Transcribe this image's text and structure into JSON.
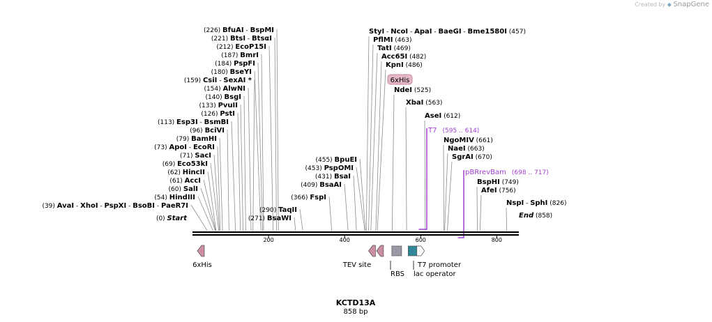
{
  "branding": {
    "created_by": "Created by",
    "app_name": "SnapGene"
  },
  "sequence": {
    "name": "KCTD13A",
    "length_label": "858 bp",
    "length": 858
  },
  "axis": {
    "ticks": [
      200,
      400,
      600,
      800
    ]
  },
  "left_labels": [
    {
      "pos": 0,
      "coord": "(0)",
      "names": [
        "Start"
      ],
      "italic": true
    },
    {
      "pos": 39,
      "coord": "(39)",
      "names": [
        "AvaI",
        "XhoI",
        "PspXI",
        "BsoBI",
        "PaeR7I"
      ]
    },
    {
      "pos": 54,
      "coord": "(54)",
      "names": [
        "HindIII"
      ]
    },
    {
      "pos": 60,
      "coord": "(60)",
      "names": [
        "SalI"
      ]
    },
    {
      "pos": 61,
      "coord": "(61)",
      "names": [
        "AccI"
      ]
    },
    {
      "pos": 62,
      "coord": "(62)",
      "names": [
        "HincII"
      ]
    },
    {
      "pos": 69,
      "coord": "(69)",
      "names": [
        "Eco53kI"
      ]
    },
    {
      "pos": 71,
      "coord": "(71)",
      "names": [
        "SacI"
      ]
    },
    {
      "pos": 73,
      "coord": "(73)",
      "names": [
        "ApoI",
        "EcoRI"
      ]
    },
    {
      "pos": 79,
      "coord": "(79)",
      "names": [
        "BamHI"
      ]
    },
    {
      "pos": 96,
      "coord": "(96)",
      "names": [
        "BciVI"
      ]
    },
    {
      "pos": 113,
      "coord": "(113)",
      "names": [
        "Esp3I",
        "BsmBI"
      ]
    },
    {
      "pos": 126,
      "coord": "(126)",
      "names": [
        "PstI"
      ]
    },
    {
      "pos": 133,
      "coord": "(133)",
      "names": [
        "PvuII"
      ]
    },
    {
      "pos": 140,
      "coord": "(140)",
      "names": [
        "BsgI"
      ]
    },
    {
      "pos": 154,
      "coord": "(154)",
      "names": [
        "AlwNI"
      ]
    },
    {
      "pos": 159,
      "coord": "(159)",
      "names": [
        "CsiI",
        "SexAI *"
      ]
    },
    {
      "pos": 180,
      "coord": "(180)",
      "names": [
        "BseYI"
      ]
    },
    {
      "pos": 184,
      "coord": "(184)",
      "names": [
        "PspFI"
      ]
    },
    {
      "pos": 187,
      "coord": "(187)",
      "names": [
        "BmrI"
      ]
    },
    {
      "pos": 212,
      "coord": "(212)",
      "names": [
        "EcoP15I"
      ]
    },
    {
      "pos": 221,
      "coord": "(221)",
      "names": [
        "BtsI",
        "BtsαI"
      ]
    },
    {
      "pos": 226,
      "coord": "(226)",
      "names": [
        "BfuAI",
        "BspMI"
      ]
    },
    {
      "pos": 271,
      "coord": "(271)",
      "names": [
        "BsaWI"
      ]
    },
    {
      "pos": 290,
      "coord": "(290)",
      "names": [
        "TaqII"
      ]
    },
    {
      "pos": 366,
      "coord": "(366)",
      "names": [
        "FspI"
      ]
    },
    {
      "pos": 409,
      "coord": "(409)",
      "names": [
        "BsaAI"
      ]
    },
    {
      "pos": 431,
      "coord": "(431)",
      "names": [
        "BsaI"
      ]
    },
    {
      "pos": 453,
      "coord": "(453)",
      "names": [
        "PspOMI"
      ]
    },
    {
      "pos": 455,
      "coord": "(455)",
      "names": [
        "BpuEI"
      ]
    }
  ],
  "right_labels": [
    {
      "pos": 457,
      "coord": "(457)",
      "names": [
        "StyI",
        "NcoI",
        "ApaI",
        "BaeGI",
        "Bme1580I"
      ]
    },
    {
      "pos": 463,
      "coord": "(463)",
      "names": [
        "PflMI"
      ]
    },
    {
      "pos": 469,
      "coord": "(469)",
      "names": [
        "TatI"
      ]
    },
    {
      "pos": 482,
      "coord": "(482)",
      "names": [
        "Acc65I"
      ]
    },
    {
      "pos": 486,
      "coord": "(486)",
      "names": [
        "KpnI"
      ]
    },
    {
      "pos": 525,
      "coord": "(525)",
      "names": [
        "NdeI"
      ]
    },
    {
      "pos": 563,
      "coord": "(563)",
      "names": [
        "XbaI"
      ]
    },
    {
      "pos": 612,
      "coord": "(612)",
      "names": [
        "AseI"
      ]
    },
    {
      "pos": 661,
      "coord": "(661)",
      "names": [
        "NgoMIV"
      ]
    },
    {
      "pos": 663,
      "coord": "(663)",
      "names": [
        "NaeI"
      ]
    },
    {
      "pos": 670,
      "coord": "(670)",
      "names": [
        "SgrAI"
      ]
    },
    {
      "pos": 749,
      "coord": "(749)",
      "names": [
        "BspHI"
      ]
    },
    {
      "pos": 756,
      "coord": "(756)",
      "names": [
        "AfeI"
      ]
    },
    {
      "pos": 826,
      "coord": "(826)",
      "names": [
        "NspI",
        "SphI"
      ]
    },
    {
      "pos": 858,
      "coord": "(858)",
      "names": [
        "End"
      ],
      "italic": true
    }
  ],
  "primers": [
    {
      "name": "T7",
      "range": "(595 .. 614)",
      "start": 595,
      "end": 614,
      "color": "#a040d0"
    },
    {
      "name": "pBRrevBam",
      "range": "(698 .. 717)",
      "start": 698,
      "end": 717,
      "color": "#a040d0"
    }
  ],
  "in_axis_feature": {
    "name": "6xHis",
    "color": "#e3b7c6",
    "border": "#c48aa0"
  },
  "features": [
    {
      "name": "6xHis",
      "pos": 22,
      "shape": "arrow-left",
      "color": "#c98ea4",
      "label_pos": 25
    },
    {
      "name": "TEV site",
      "pos": 472,
      "shape": "arrow-left",
      "color": "#c98ea4",
      "label_pos": 440
    },
    {
      "name": "",
      "pos": 493,
      "shape": "arrow-left",
      "color": "#c98ea4"
    },
    {
      "name": "RBS",
      "pos": 537,
      "shape": "box",
      "color": "#9a9aa6",
      "label_pos": 537
    },
    {
      "name": "T7 promoter",
      "pos": 580,
      "shape": "box",
      "color": "#2e8897",
      "label_pos": 620
    },
    {
      "name": "lac operator",
      "pos": 599,
      "shape": "arrow-right-outline",
      "color": "#ffffff",
      "label_pos": 610
    }
  ],
  "colors": {
    "enzyme": "#000000",
    "coord": "#000000",
    "tick_line": "#8c8c8c",
    "backbone": "#000000",
    "primer": "#a040d0"
  }
}
